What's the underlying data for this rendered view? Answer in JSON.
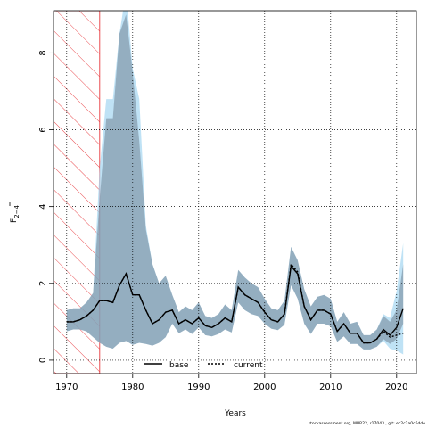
{
  "chart_data": {
    "type": "line",
    "title": "",
    "xlabel": "Years",
    "ylabel_main": "F",
    "ylabel_sub": "2−4",
    "xlim": [
      1968,
      2023
    ],
    "ylim": [
      -0.35,
      9.1
    ],
    "x_ticks": [
      1970,
      1980,
      1990,
      2000,
      2010,
      2020
    ],
    "y_ticks": [
      0,
      2,
      4,
      6,
      8
    ],
    "grid": true,
    "shaded_period": [
      1968,
      1975
    ],
    "shaded_color": "#e8383d",
    "legend_position": "bottom-center",
    "footer": "stockassessment.org, MUR22, r17043 , git: ec2c2a0c6dde",
    "series": [
      {
        "name": "base",
        "style": "solid",
        "color": "#000000",
        "band_color": "#5f6e80",
        "years": [
          1970,
          1971,
          1972,
          1973,
          1974,
          1975,
          1976,
          1977,
          1978,
          1979,
          1980,
          1981,
          1982,
          1983,
          1984,
          1985,
          1986,
          1987,
          1988,
          1989,
          1990,
          1991,
          1992,
          1993,
          1994,
          1995,
          1996,
          1997,
          1998,
          1999,
          2000,
          2001,
          2002,
          2003,
          2004,
          2005,
          2006,
          2007,
          2008,
          2009,
          2010,
          2011,
          2012,
          2013,
          2014,
          2015,
          2016,
          2017,
          2018,
          2019,
          2020,
          2021
        ],
        "mean": [
          1.0,
          1.0,
          1.05,
          1.15,
          1.3,
          1.55,
          1.55,
          1.5,
          1.95,
          2.25,
          1.7,
          1.7,
          1.3,
          0.95,
          1.05,
          1.25,
          1.3,
          0.95,
          1.05,
          0.95,
          1.1,
          0.9,
          0.85,
          0.95,
          1.1,
          1.0,
          1.9,
          1.7,
          1.6,
          1.5,
          1.25,
          1.05,
          1.0,
          1.2,
          2.45,
          2.25,
          1.4,
          1.05,
          1.3,
          1.3,
          1.2,
          0.75,
          0.95,
          0.7,
          0.7,
          0.45,
          0.45,
          0.55,
          0.8,
          0.65,
          0.85,
          1.35
        ],
        "lower": [
          0.75,
          0.8,
          0.8,
          0.75,
          0.6,
          0.45,
          0.35,
          0.3,
          0.45,
          0.5,
          0.4,
          0.45,
          0.42,
          0.38,
          0.45,
          0.6,
          0.95,
          0.7,
          0.8,
          0.68,
          0.85,
          0.65,
          0.62,
          0.68,
          0.8,
          0.72,
          1.5,
          1.3,
          1.2,
          1.15,
          0.95,
          0.82,
          0.78,
          0.92,
          1.95,
          1.6,
          0.95,
          0.68,
          0.95,
          0.95,
          0.88,
          0.48,
          0.62,
          0.42,
          0.42,
          0.28,
          0.28,
          0.35,
          0.55,
          0.42,
          0.55,
          0.95
        ],
        "upper": [
          1.3,
          1.35,
          1.35,
          1.5,
          1.75,
          4.2,
          6.3,
          6.3,
          8.5,
          9.0,
          7.5,
          5.7,
          3.4,
          2.5,
          2.0,
          2.2,
          1.7,
          1.25,
          1.4,
          1.3,
          1.5,
          1.15,
          1.1,
          1.2,
          1.45,
          1.3,
          2.35,
          2.15,
          2.0,
          1.9,
          1.6,
          1.35,
          1.3,
          1.55,
          2.95,
          2.6,
          1.85,
          1.4,
          1.65,
          1.7,
          1.6,
          1.0,
          1.25,
          0.95,
          1.0,
          0.65,
          0.65,
          0.8,
          1.15,
          1.0,
          1.3,
          2.5
        ]
      },
      {
        "name": "current",
        "style": "dotted",
        "color": "#000000",
        "band_color": "#a9d8f2",
        "years": [
          1970,
          1971,
          1972,
          1973,
          1974,
          1975,
          1976,
          1977,
          1978,
          1979,
          1980,
          1981,
          1982,
          1983,
          1984,
          1985,
          1986,
          1987,
          1988,
          1989,
          1990,
          1991,
          1992,
          1993,
          1994,
          1995,
          1996,
          1997,
          1998,
          1999,
          2000,
          2001,
          2002,
          2003,
          2004,
          2005,
          2006,
          2007,
          2008,
          2009,
          2010,
          2011,
          2012,
          2013,
          2014,
          2015,
          2016,
          2017,
          2018,
          2019,
          2020,
          2021
        ],
        "mean": [
          1.0,
          1.0,
          1.05,
          1.15,
          1.3,
          1.55,
          1.55,
          1.5,
          1.95,
          2.25,
          1.7,
          1.7,
          1.3,
          0.95,
          1.05,
          1.25,
          1.3,
          0.95,
          1.05,
          0.95,
          1.1,
          0.9,
          0.85,
          0.95,
          1.1,
          1.0,
          1.9,
          1.7,
          1.6,
          1.5,
          1.25,
          1.05,
          1.0,
          1.2,
          2.5,
          2.3,
          1.4,
          1.05,
          1.3,
          1.3,
          1.2,
          0.75,
          0.95,
          0.7,
          0.7,
          0.45,
          0.45,
          0.55,
          0.75,
          0.6,
          0.65,
          0.7
        ],
        "lower": [
          0.75,
          0.8,
          0.8,
          0.75,
          0.6,
          0.45,
          0.35,
          0.3,
          0.45,
          0.5,
          0.4,
          0.45,
          0.42,
          0.38,
          0.45,
          0.6,
          0.95,
          0.7,
          0.8,
          0.68,
          0.85,
          0.65,
          0.62,
          0.68,
          0.8,
          0.72,
          1.5,
          1.3,
          1.2,
          1.15,
          0.95,
          0.82,
          0.78,
          0.92,
          1.95,
          1.6,
          0.95,
          0.68,
          0.95,
          0.95,
          0.88,
          0.48,
          0.62,
          0.42,
          0.42,
          0.28,
          0.28,
          0.35,
          0.5,
          0.3,
          0.25,
          0.15
        ],
        "upper": [
          1.3,
          1.35,
          1.35,
          1.5,
          1.75,
          5.0,
          6.8,
          6.8,
          8.5,
          9.6,
          7.6,
          6.8,
          3.5,
          2.5,
          2.0,
          2.2,
          1.7,
          1.25,
          1.4,
          1.3,
          1.5,
          1.15,
          1.1,
          1.2,
          1.45,
          1.3,
          2.35,
          2.15,
          2.0,
          1.9,
          1.6,
          1.35,
          1.3,
          1.55,
          2.95,
          2.6,
          1.85,
          1.4,
          1.65,
          1.7,
          1.6,
          1.0,
          1.25,
          0.95,
          1.0,
          0.65,
          0.65,
          0.8,
          1.2,
          1.1,
          1.8,
          3.05
        ]
      }
    ]
  }
}
